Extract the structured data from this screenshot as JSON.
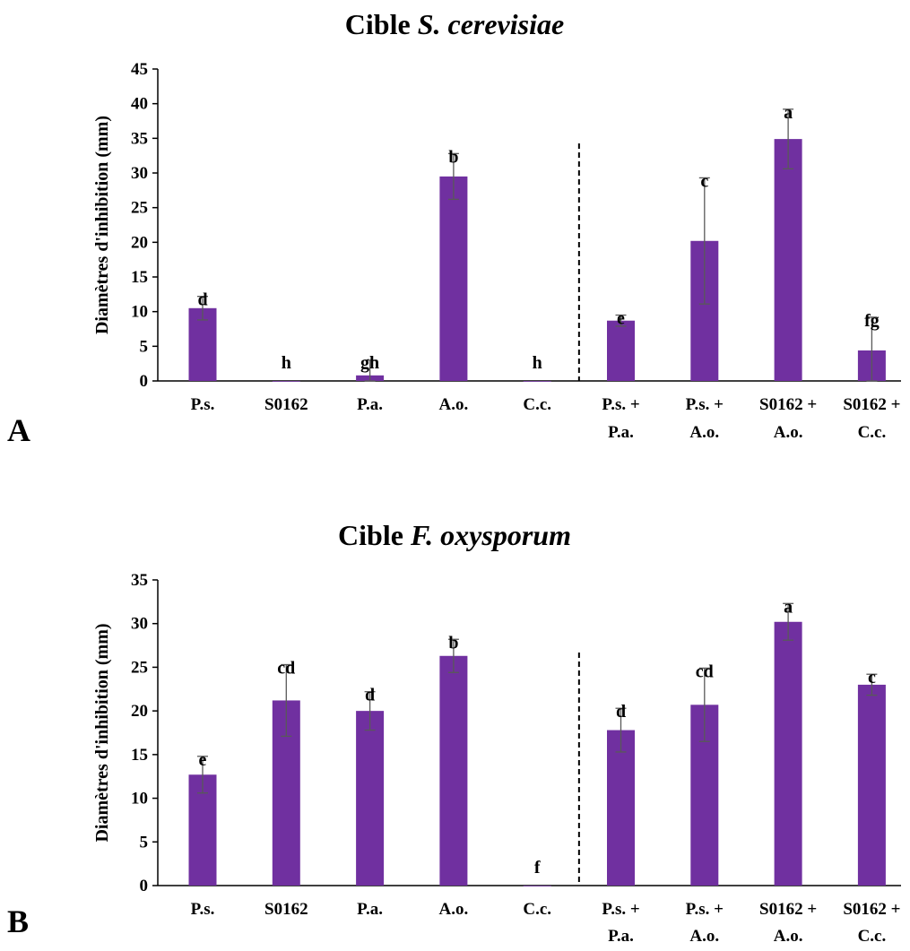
{
  "chart_data": [
    {
      "type": "bar",
      "panel": "A",
      "title_prefix": "Cible ",
      "title_italic": "S. cerevisiae",
      "ylabel": "Diamètres d'inhibition (mm)",
      "ylim": [
        0,
        45
      ],
      "yticks": [
        0,
        5,
        10,
        15,
        20,
        25,
        30,
        35,
        40,
        45
      ],
      "categories": [
        [
          "P.s."
        ],
        [
          "S0162"
        ],
        [
          "P.a."
        ],
        [
          "A.o."
        ],
        [
          "C.c."
        ],
        [
          "P.s. +",
          "P.a."
        ],
        [
          "P.s. +",
          "A.o."
        ],
        [
          "S0162 +",
          "A.o."
        ],
        [
          "S0162 +",
          "C.c."
        ]
      ],
      "values": [
        10.5,
        0,
        0.8,
        29.5,
        0,
        8.7,
        20.2,
        34.9,
        4.4
      ],
      "errors": [
        1.7,
        0,
        2.2,
        3.3,
        0,
        0.8,
        9.1,
        4.3,
        4.8
      ],
      "letters": [
        "d",
        "h",
        "gh",
        "b",
        "h",
        "e",
        "c",
        "a",
        "fg"
      ],
      "separator_after_index": 4,
      "grid": false,
      "bar_color": "#7030a0",
      "error_color": "#595959"
    },
    {
      "type": "bar",
      "panel": "B",
      "title_prefix": "Cible ",
      "title_italic": "F. oxysporum",
      "ylabel": "Diamètres d'inhibition (mm)",
      "ylim": [
        0,
        35
      ],
      "yticks": [
        0,
        5,
        10,
        15,
        20,
        25,
        30,
        35
      ],
      "categories": [
        [
          "P.s."
        ],
        [
          "S0162"
        ],
        [
          "P.a."
        ],
        [
          "A.o."
        ],
        [
          "C.c."
        ],
        [
          "P.s. +",
          "P.a."
        ],
        [
          "P.s. +",
          "A.o."
        ],
        [
          "S0162 +",
          "A.o."
        ],
        [
          "S0162 +",
          "C.c."
        ]
      ],
      "values": [
        12.7,
        21.2,
        20.0,
        26.3,
        0,
        17.8,
        20.7,
        30.2,
        23.0
      ],
      "errors": [
        2.1,
        4.1,
        2.2,
        1.9,
        0,
        2.5,
        4.2,
        2.1,
        1.2
      ],
      "letters": [
        "e",
        "cd",
        "d",
        "b",
        "f",
        "d",
        "cd",
        "a",
        "c"
      ],
      "separator_after_index": 4,
      "grid": false,
      "bar_color": "#7030a0",
      "error_color": "#595959"
    }
  ]
}
